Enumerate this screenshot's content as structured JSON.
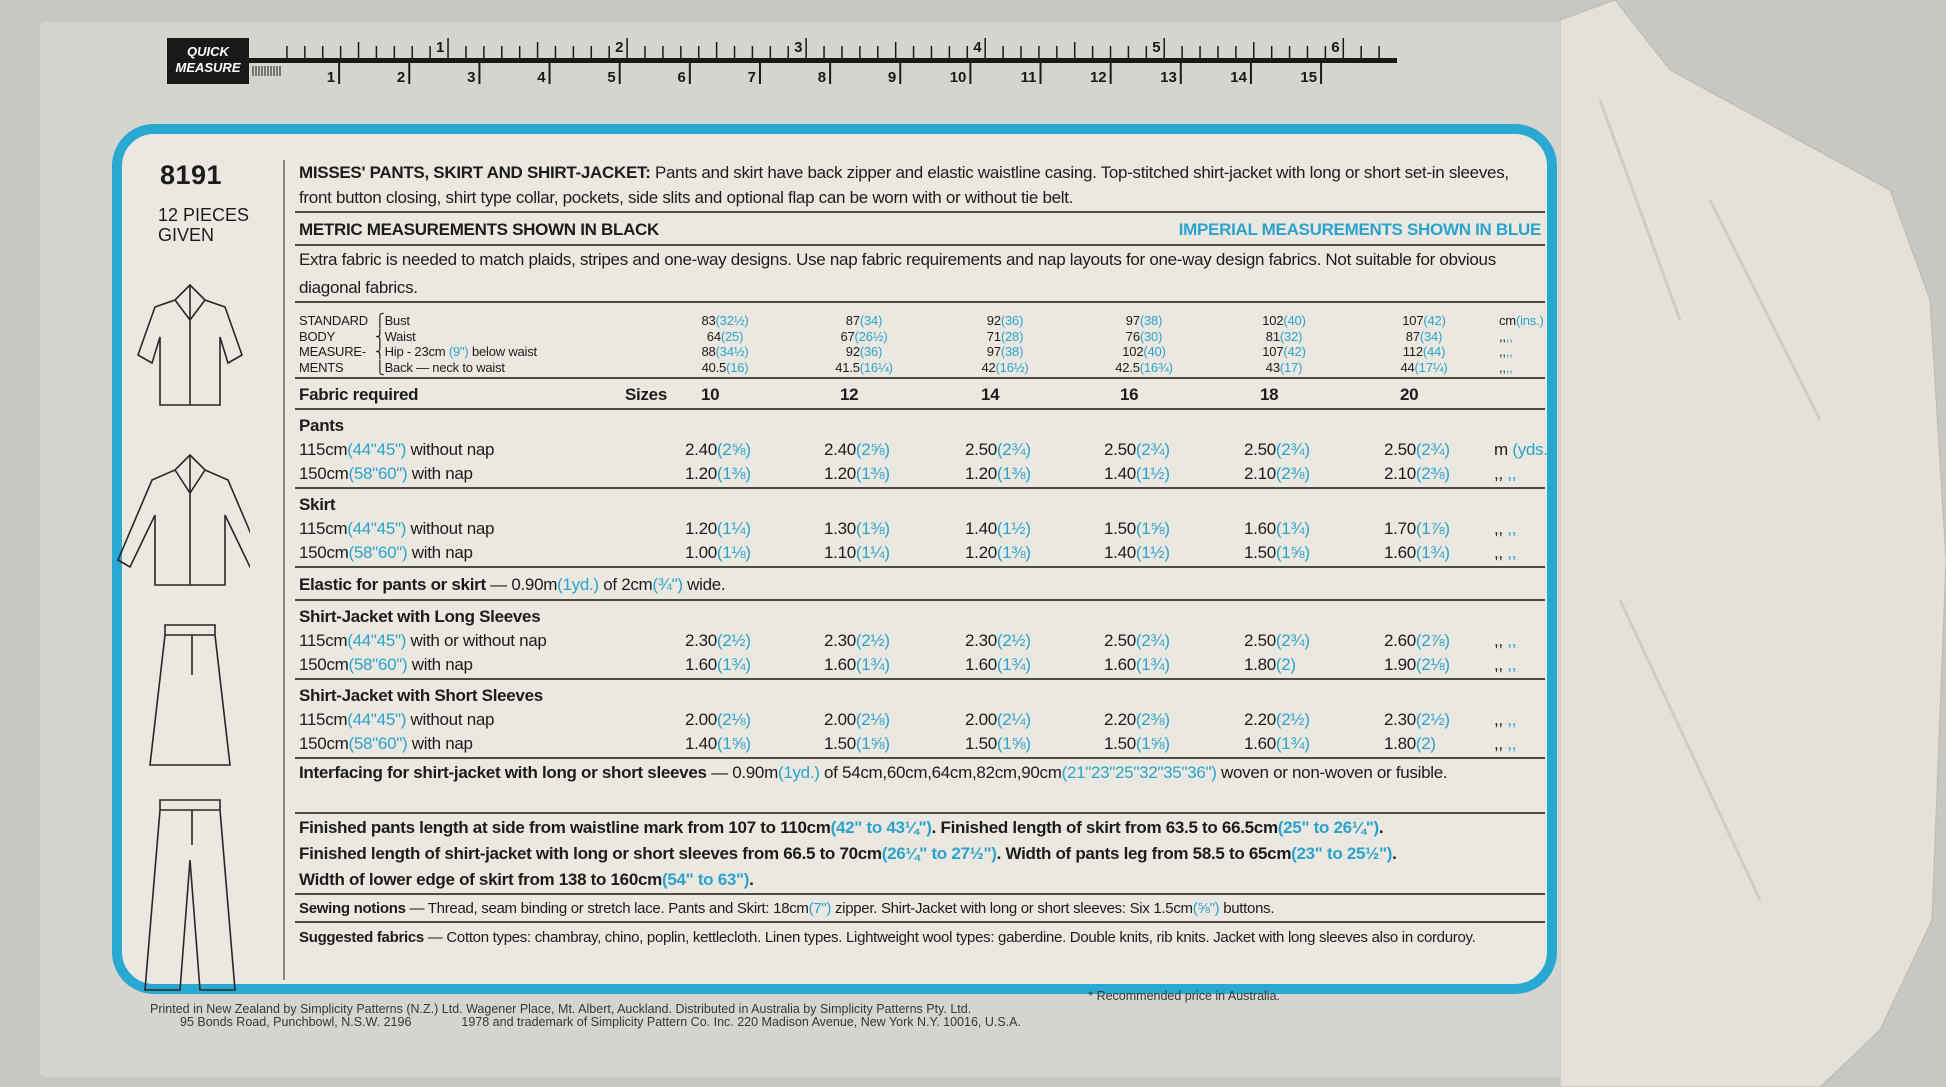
{
  "ruler": {
    "brand": [
      "QUICK",
      "MEASURE"
    ],
    "inches": [
      "1",
      "2",
      "3",
      "4",
      "5",
      "6"
    ],
    "cm": [
      "1",
      "2",
      "3",
      "4",
      "5",
      "6",
      "7",
      "8",
      "9",
      "10",
      "11",
      "12",
      "13",
      "14",
      "15"
    ]
  },
  "pattern": {
    "number": "8191",
    "pieces": [
      "12 PIECES",
      "GIVEN"
    ]
  },
  "description": [
    {
      "t": "MISSES' PANTS, SKIRT AND SHIRT-JACKET:",
      "s": "b"
    },
    {
      "t": " Pants and skirt have back zipper and elastic waistline casing. Top-stitched shirt-jacket with long or short set-in sleeves, front button closing, shirt type collar, pockets, side slits and optional flap can be worn with or without tie belt.",
      "s": ""
    }
  ],
  "metric_label": "METRIC MEASUREMENTS SHOWN IN BLACK",
  "imperial_label": "IMPERIAL MEASUREMENTS SHOWN IN BLUE",
  "note": [
    {
      "t": "Extra fabric is needed to match plaids, stripes and one-way designs. Use nap fabric requirements and nap layouts for one-way design fabrics. Not suitable for obvious diagonal fabrics.",
      "s": ""
    }
  ],
  "body": {
    "label": [
      "STANDARD",
      "BODY",
      "MEASURE-",
      "MENTS"
    ],
    "rows": [
      {
        "label": [
          {
            "t": "Bust",
            "s": ""
          }
        ],
        "values": [
          [
            "83",
            "32½"
          ],
          [
            "87",
            "34"
          ],
          [
            "92",
            "36"
          ],
          [
            "97",
            "38"
          ],
          [
            "102",
            "40"
          ],
          [
            "107",
            "42"
          ]
        ],
        "unit": [
          "cm",
          "ins."
        ]
      },
      {
        "label": [
          {
            "t": "Waist",
            "s": ""
          }
        ],
        "values": [
          [
            "64",
            "25"
          ],
          [
            "67",
            "26½"
          ],
          [
            "71",
            "28"
          ],
          [
            "76",
            "30"
          ],
          [
            "81",
            "32"
          ],
          [
            "87",
            "34"
          ]
        ],
        "unit": [
          ",,",
          ",,"
        ]
      },
      {
        "label": [
          {
            "t": "Hip - 23cm ",
            "s": ""
          },
          {
            "t": "(9\")",
            "s": "blue"
          },
          {
            "t": " below waist",
            "s": ""
          }
        ],
        "values": [
          [
            "88",
            "34½"
          ],
          [
            "92",
            "36"
          ],
          [
            "97",
            "38"
          ],
          [
            "102",
            "40"
          ],
          [
            "107",
            "42"
          ],
          [
            "112",
            "44"
          ]
        ],
        "unit": [
          ",,",
          ",,"
        ]
      },
      {
        "label": [
          {
            "t": "Back — neck to waist",
            "s": ""
          }
        ],
        "values": [
          [
            "40.5",
            "16"
          ],
          [
            "41.5",
            "16¼"
          ],
          [
            "42",
            "16½"
          ],
          [
            "42.5",
            "16¾"
          ],
          [
            "43",
            "17"
          ],
          [
            "44",
            "17¼"
          ]
        ],
        "unit": [
          ",,",
          ",,"
        ]
      }
    ]
  },
  "fabric": {
    "title": "Fabric required",
    "sizes_label": "Sizes",
    "sizes": [
      "10",
      "12",
      "14",
      "16",
      "18",
      "20"
    ],
    "sections": [
      {
        "title": "Pants",
        "rows": [
          {
            "width": "115cm",
            "width_imp": "(44\"45\")",
            "nap": " without nap",
            "values": [
              [
                "2.40",
                "2⅝"
              ],
              [
                "2.40",
                "2⅝"
              ],
              [
                "2.50",
                "2¾"
              ],
              [
                "2.50",
                "2¾"
              ],
              [
                "2.50",
                "2¾"
              ],
              [
                "2.50",
                "2¾"
              ]
            ],
            "unit": [
              "m",
              "yds."
            ]
          },
          {
            "width": "150cm",
            "width_imp": "(58\"60\")",
            "nap": " with nap",
            "values": [
              [
                "1.20",
                "1⅜"
              ],
              [
                "1.20",
                "1⅜"
              ],
              [
                "1.20",
                "1⅜"
              ],
              [
                "1.40",
                "1½"
              ],
              [
                "2.10",
                "2⅜"
              ],
              [
                "2.10",
                "2⅜"
              ]
            ],
            "unit": [
              ",,",
              ",,"
            ]
          }
        ]
      },
      {
        "title": "Skirt",
        "rows": [
          {
            "width": "115cm",
            "width_imp": "(44\"45\")",
            "nap": " without nap",
            "values": [
              [
                "1.20",
                "1¼"
              ],
              [
                "1.30",
                "1⅜"
              ],
              [
                "1.40",
                "1½"
              ],
              [
                "1.50",
                "1⅝"
              ],
              [
                "1.60",
                "1¾"
              ],
              [
                "1.70",
                "1⅞"
              ]
            ],
            "unit": [
              ",,",
              ",,"
            ]
          },
          {
            "width": "150cm",
            "width_imp": "(58\"60\")",
            "nap": " with nap",
            "values": [
              [
                "1.00",
                "1⅛"
              ],
              [
                "1.10",
                "1¼"
              ],
              [
                "1.20",
                "1⅜"
              ],
              [
                "1.40",
                "1½"
              ],
              [
                "1.50",
                "1⅝"
              ],
              [
                "1.60",
                "1¾"
              ]
            ],
            "unit": [
              ",,",
              ",,"
            ]
          }
        ]
      }
    ],
    "elastic": [
      {
        "t": "Elastic for pants or skirt",
        "s": "b"
      },
      {
        "t": " — 0.90m",
        "s": ""
      },
      {
        "t": "(1yd.)",
        "s": "blue"
      },
      {
        "t": " of 2cm",
        "s": ""
      },
      {
        "t": "(¾\")",
        "s": "blue"
      },
      {
        "t": " wide.",
        "s": ""
      }
    ],
    "sections2": [
      {
        "title": "Shirt-Jacket with Long Sleeves",
        "rows": [
          {
            "width": "115cm",
            "width_imp": "(44\"45\")",
            "nap": " with or without nap",
            "values": [
              [
                "2.30",
                "2½"
              ],
              [
                "2.30",
                "2½"
              ],
              [
                "2.30",
                "2½"
              ],
              [
                "2.50",
                "2¾"
              ],
              [
                "2.50",
                "2¾"
              ],
              [
                "2.60",
                "2⅞"
              ]
            ],
            "unit": [
              ",,",
              ",,"
            ]
          },
          {
            "width": "150cm",
            "width_imp": "(58\"60\")",
            "nap": " with nap",
            "values": [
              [
                "1.60",
                "1¾"
              ],
              [
                "1.60",
                "1¾"
              ],
              [
                "1.60",
                "1¾"
              ],
              [
                "1.60",
                "1¾"
              ],
              [
                "1.80",
                "2"
              ],
              [
                "1.90",
                "2⅛"
              ]
            ],
            "unit": [
              ",,",
              ",,"
            ]
          }
        ]
      },
      {
        "title": "Shirt-Jacket with Short Sleeves",
        "rows": [
          {
            "width": "115cm",
            "width_imp": "(44\"45\")",
            "nap": " without nap",
            "values": [
              [
                "2.00",
                "2⅛"
              ],
              [
                "2.00",
                "2⅛"
              ],
              [
                "2.00",
                "2¼"
              ],
              [
                "2.20",
                "2⅜"
              ],
              [
                "2.20",
                "2½"
              ],
              [
                "2.30",
                "2½"
              ]
            ],
            "unit": [
              ",,",
              ",,"
            ]
          },
          {
            "width": "150cm",
            "width_imp": "(58\"60\")",
            "nap": " with nap",
            "values": [
              [
                "1.40",
                "1⅝"
              ],
              [
                "1.50",
                "1⅝"
              ],
              [
                "1.50",
                "1⅝"
              ],
              [
                "1.50",
                "1⅝"
              ],
              [
                "1.60",
                "1¾"
              ],
              [
                "1.80",
                "2"
              ]
            ],
            "unit": [
              ",,",
              ",,"
            ]
          }
        ]
      }
    ]
  },
  "interfacing": [
    {
      "t": "Interfacing for shirt-jacket with long or short sleeves",
      "s": "b"
    },
    {
      "t": " — 0.90m",
      "s": ""
    },
    {
      "t": "(1yd.)",
      "s": "blue"
    },
    {
      "t": " of 54cm,60cm,64cm,82cm,90cm",
      "s": ""
    },
    {
      "t": "(21\"23\"25\"32\"35\"36\")",
      "s": "blue"
    },
    {
      "t": " woven or non-woven or fusible.",
      "s": ""
    }
  ],
  "finished": [
    {
      "t": "Finished pants length at side from waistline mark from 107 to 110cm",
      "s": "b"
    },
    {
      "t": "(42\" to 43¼\")",
      "s": "blue b"
    },
    {
      "t": ". Finished length of skirt from 63.5 to 66.5cm",
      "s": "b"
    },
    {
      "t": "(25\" to 26¼\")",
      "s": "blue b"
    },
    {
      "t": ". Finished length of shirt-jacket with long or short sleeves from 66.5 to 70cm",
      "s": "b"
    },
    {
      "t": "(26¼\" to 27½\")",
      "s": "blue b"
    },
    {
      "t": ". Width of pants leg from 58.5 to 65cm",
      "s": "b"
    },
    {
      "t": "(23\" to 25½\")",
      "s": "blue b"
    },
    {
      "t": ". Width of lower edge of skirt from 138 to 160cm",
      "s": "b"
    },
    {
      "t": "(54\" to 63\")",
      "s": "blue b"
    },
    {
      "t": ".",
      "s": "b"
    }
  ],
  "notions": [
    {
      "t": "Sewing notions",
      "s": "b"
    },
    {
      "t": " — Thread, seam binding or stretch lace. Pants and Skirt: 18cm",
      "s": ""
    },
    {
      "t": "(7\")",
      "s": "blue"
    },
    {
      "t": " zipper. Shirt-Jacket with long or short sleeves: Six 1.5cm",
      "s": ""
    },
    {
      "t": "(⅝\")",
      "s": "blue"
    },
    {
      "t": " buttons.",
      "s": ""
    }
  ],
  "suggested": [
    {
      "t": "Suggested fabrics",
      "s": "b"
    },
    {
      "t": " — Cotton types: chambray, chino, poplin, kettlecloth. Linen types. Lightweight wool types: gaberdine. Double knits, rib knits. Jacket with long sleeves also in corduroy.",
      "s": ""
    }
  ],
  "footer": {
    "price_note": "* Recommended price in Australia.",
    "line1": "Printed in New Zealand by Simplicity Patterns (N.Z.) Ltd. Wagener Place, Mt. Albert, Auckland. Distributed in Australia by Simplicity Patterns Pty. Ltd.",
    "line2a": "95 Bonds Road, Punchbowl, N.S.W. 2196",
    "line2b": "1978 and trademark of Simplicity Pattern Co. Inc. 220 Madison Avenue, New York N.Y. 10016, U.S.A."
  },
  "colors": {
    "blue": "#29a8d2",
    "ink": "#1e1c1a",
    "paper": "#ebe8e1"
  }
}
